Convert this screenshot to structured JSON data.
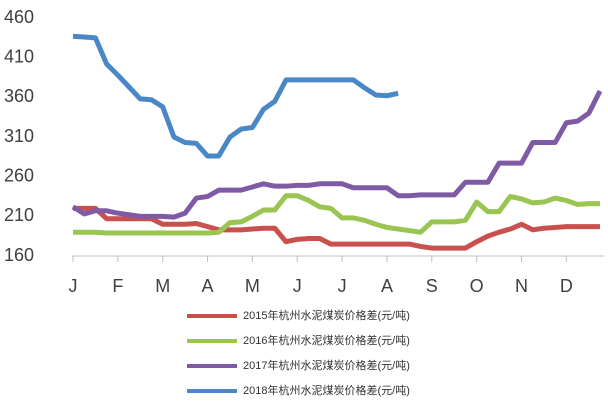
{
  "chart_data": {
    "type": "line",
    "x": [
      0,
      0.25,
      0.5,
      0.75,
      1,
      1.25,
      1.5,
      1.75,
      2,
      2.25,
      2.5,
      2.75,
      3,
      3.25,
      3.5,
      3.75,
      4,
      4.25,
      4.5,
      4.75,
      5,
      5.25,
      5.5,
      5.75,
      6,
      6.25,
      6.5,
      6.75,
      7,
      7.25,
      7.5,
      7.75,
      8,
      8.25,
      8.5,
      8.75,
      9,
      9.25,
      9.5,
      9.75,
      10,
      10.25,
      10.5,
      10.75,
      11,
      11.25,
      11.5,
      11.75
    ],
    "xlim": [
      0,
      11.75
    ],
    "xticks": [
      {
        "value": 0,
        "label": "J"
      },
      {
        "value": 1,
        "label": "F"
      },
      {
        "value": 2,
        "label": "M"
      },
      {
        "value": 3,
        "label": "A"
      },
      {
        "value": 4,
        "label": "M"
      },
      {
        "value": 5,
        "label": "J"
      },
      {
        "value": 6,
        "label": "J"
      },
      {
        "value": 7,
        "label": "A"
      },
      {
        "value": 8,
        "label": "S"
      },
      {
        "value": 9,
        "label": "O"
      },
      {
        "value": 10,
        "label": "N"
      },
      {
        "value": 11,
        "label": "D"
      }
    ],
    "ylim": [
      160,
      460
    ],
    "yticks": [
      160,
      210,
      260,
      310,
      360,
      410,
      460
    ],
    "grid": false,
    "legend": "bottom",
    "series": [
      {
        "name": "2015年杭州水泥煤炭价格差(元/吨)",
        "color": "#c9504c",
        "values": [
          220,
          220,
          220,
          207,
          207,
          207,
          207,
          207,
          200,
          200,
          200,
          201,
          197,
          193,
          193,
          193,
          194,
          195,
          195,
          178,
          181,
          182,
          182,
          175,
          175,
          175,
          175,
          175,
          175,
          175,
          175,
          172,
          170,
          170,
          170,
          170,
          178,
          185,
          190,
          194,
          200,
          193,
          195,
          196,
          197,
          197,
          197,
          197
        ]
      },
      {
        "name": "2016年杭州水泥煤炭价格差(元/吨)",
        "color": "#9bc552",
        "values": [
          190,
          190,
          190,
          189,
          189,
          189,
          189,
          189,
          189,
          189,
          189,
          189,
          189,
          190,
          202,
          203,
          210,
          218,
          218,
          236,
          236,
          230,
          222,
          220,
          208,
          208,
          205,
          200,
          196,
          194,
          192,
          190,
          203,
          203,
          203,
          205,
          228,
          216,
          216,
          235,
          232,
          227,
          228,
          233,
          230,
          225,
          226,
          226
        ]
      },
      {
        "name": "2017年杭州水泥煤炭价格差(元/吨)",
        "color": "#7f5ba6",
        "values": [
          222,
          213,
          217,
          217,
          214,
          212,
          210,
          210,
          210,
          209,
          214,
          233,
          235,
          243,
          243,
          243,
          247,
          251,
          248,
          248,
          249,
          249,
          251,
          251,
          251,
          246,
          246,
          246,
          246,
          236,
          236,
          237,
          237,
          237,
          237,
          253,
          253,
          253,
          277,
          277,
          277,
          303,
          303,
          303,
          328,
          330,
          340,
          368
        ]
      },
      {
        "name": "2018年杭州水泥煤炭价格差(元/吨)",
        "color": "#4a87c6",
        "values": [
          437,
          436,
          435,
          402,
          388,
          373,
          358,
          357,
          348,
          310,
          303,
          302,
          286,
          286,
          310,
          320,
          322,
          345,
          355,
          382,
          382,
          382,
          382,
          382,
          382,
          382,
          372,
          363,
          362,
          365,
          null,
          null,
          null,
          null,
          null,
          null,
          null,
          null,
          null,
          null,
          null,
          null,
          null,
          null,
          null,
          null,
          null,
          null
        ]
      }
    ]
  }
}
